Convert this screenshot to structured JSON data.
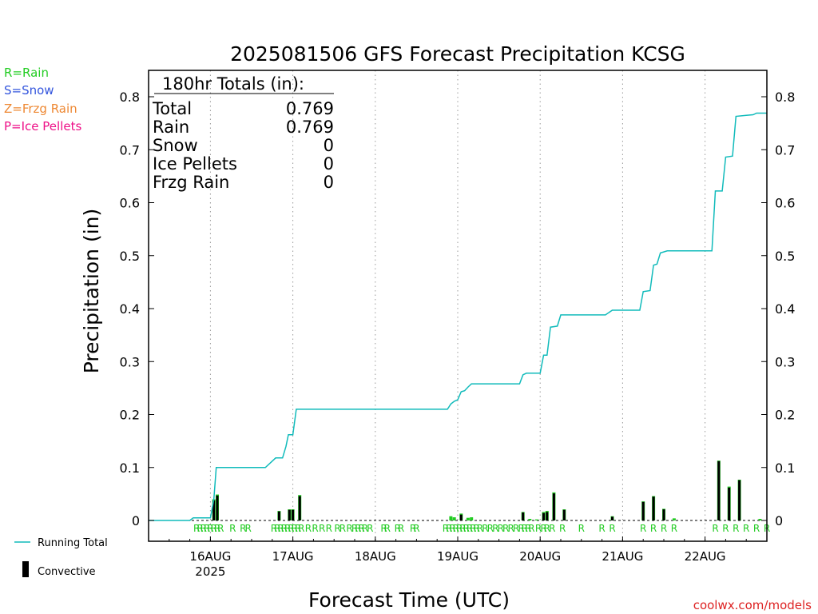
{
  "chart_data": {
    "type": "bar",
    "title": "2025081506 GFS Forecast Precipitation KCSG",
    "ylabel": "Precipitation (in)",
    "xlabel": "Forecast Time (UTC)",
    "ylim": [
      0,
      0.85
    ],
    "y_ticks": [
      "0",
      "0.1",
      "0.2",
      "0.3",
      "0.4",
      "0.5",
      "0.6",
      "0.7",
      "0.8"
    ],
    "x_ticks": [
      {
        "label": "16AUG",
        "sub": "2025",
        "hour": 18
      },
      {
        "label": "17AUG",
        "sub": "",
        "hour": 42
      },
      {
        "label": "18AUG",
        "sub": "",
        "hour": 66
      },
      {
        "label": "19AUG",
        "sub": "",
        "hour": 90
      },
      {
        "label": "20AUG",
        "sub": "",
        "hour": 114
      },
      {
        "label": "21AUG",
        "sub": "",
        "hour": 138
      },
      {
        "label": "22AUG",
        "sub": "",
        "hour": 162
      }
    ],
    "xlim_hours": [
      0,
      180
    ],
    "grid": "vertical dotted at day boundaries",
    "legend_left": [
      {
        "text": "R=Rain",
        "color": "#22cc22"
      },
      {
        "text": "S=Snow",
        "color": "#3355dd"
      },
      {
        "text": "Z=Frzg Rain",
        "color": "#ee8833"
      },
      {
        "text": "P=Ice Pellets",
        "color": "#ee1188"
      }
    ],
    "legend_bottom": [
      {
        "text": "Running Total",
        "color": "#11bbbb"
      },
      {
        "text": "Convective",
        "color": "#000000"
      }
    ],
    "totals_box": {
      "header": "180hr Totals (in):",
      "rows": [
        {
          "label": "Total",
          "value": "0.769"
        },
        {
          "label": "Rain",
          "value": "0.769"
        },
        {
          "label": "Snow",
          "value": "0"
        },
        {
          "label": "Ice Pellets",
          "value": "0"
        },
        {
          "label": "Frzg Rain",
          "value": "0"
        }
      ]
    },
    "credit": "coolwx.com/models",
    "series": [
      {
        "name": "Running Total",
        "color": "#11bbbb",
        "points": [
          [
            0,
            0
          ],
          [
            12,
            0
          ],
          [
            13,
            0.005
          ],
          [
            18,
            0.005
          ],
          [
            19,
            0.04
          ],
          [
            19.7,
            0.1
          ],
          [
            34,
            0.1
          ],
          [
            37,
            0.118
          ],
          [
            39,
            0.118
          ],
          [
            40,
            0.14
          ],
          [
            40.7,
            0.162
          ],
          [
            42,
            0.162
          ],
          [
            43,
            0.21
          ],
          [
            87,
            0.21
          ],
          [
            88,
            0.22
          ],
          [
            89,
            0.225
          ],
          [
            90,
            0.228
          ],
          [
            91,
            0.243
          ],
          [
            92,
            0.245
          ],
          [
            93,
            0.252
          ],
          [
            94,
            0.258
          ],
          [
            108,
            0.258
          ],
          [
            109,
            0.275
          ],
          [
            110,
            0.278
          ],
          [
            114,
            0.278
          ],
          [
            115,
            0.312
          ],
          [
            116,
            0.312
          ],
          [
            117,
            0.365
          ],
          [
            119,
            0.367
          ],
          [
            120,
            0.388
          ],
          [
            133,
            0.388
          ],
          [
            135,
            0.397
          ],
          [
            143,
            0.397
          ],
          [
            144,
            0.432
          ],
          [
            146,
            0.434
          ],
          [
            147,
            0.482
          ],
          [
            148,
            0.484
          ],
          [
            149,
            0.505
          ],
          [
            151,
            0.509
          ],
          [
            164,
            0.509
          ],
          [
            165,
            0.622
          ],
          [
            167,
            0.622
          ],
          [
            168,
            0.686
          ],
          [
            170,
            0.688
          ],
          [
            171,
            0.763
          ],
          [
            174,
            0.765
          ],
          [
            176,
            0.766
          ],
          [
            177,
            0.769
          ],
          [
            180,
            0.769
          ]
        ]
      }
    ],
    "bars_total": [
      [
        19,
        0.04
      ],
      [
        20,
        0.049
      ],
      [
        38,
        0.018
      ],
      [
        41,
        0.021
      ],
      [
        42,
        0.021
      ],
      [
        44,
        0.048
      ],
      [
        88,
        0.008
      ],
      [
        89,
        0.006
      ],
      [
        91,
        0.013
      ],
      [
        93,
        0.005
      ],
      [
        94,
        0.006
      ],
      [
        109,
        0.016
      ],
      [
        111,
        0.003
      ],
      [
        113,
        0.002
      ],
      [
        115,
        0.016
      ],
      [
        116,
        0.018
      ],
      [
        118,
        0.053
      ],
      [
        121,
        0.021
      ],
      [
        135,
        0.008
      ],
      [
        144,
        0.036
      ],
      [
        147,
        0.046
      ],
      [
        150,
        0.022
      ],
      [
        153,
        0.004
      ],
      [
        166,
        0.113
      ],
      [
        169,
        0.064
      ],
      [
        172,
        0.077
      ],
      [
        178,
        0.003
      ]
    ],
    "bars_convective": [
      [
        19,
        0.038
      ],
      [
        20,
        0.047
      ],
      [
        38,
        0.017
      ],
      [
        41,
        0.02
      ],
      [
        42,
        0.02
      ],
      [
        44,
        0.046
      ],
      [
        91,
        0.011
      ],
      [
        109,
        0.015
      ],
      [
        115,
        0.014
      ],
      [
        116,
        0.016
      ],
      [
        118,
        0.051
      ],
      [
        121,
        0.02
      ],
      [
        135,
        0.007
      ],
      [
        144,
        0.035
      ],
      [
        147,
        0.045
      ],
      [
        150,
        0.021
      ],
      [
        166,
        0.112
      ],
      [
        169,
        0.062
      ],
      [
        172,
        0.076
      ]
    ],
    "ptype_marks": [
      {
        "hour": 14,
        "t": "R"
      },
      {
        "hour": 15,
        "t": "R"
      },
      {
        "hour": 16,
        "t": "R"
      },
      {
        "hour": 17,
        "t": "R"
      },
      {
        "hour": 18,
        "t": "R"
      },
      {
        "hour": 19,
        "t": "R"
      },
      {
        "hour": 20,
        "t": "R"
      },
      {
        "hour": 21,
        "t": "R"
      },
      {
        "hour": 24.5,
        "t": "R"
      },
      {
        "hour": 27.5,
        "t": "R"
      },
      {
        "hour": 29,
        "t": "R"
      },
      {
        "hour": 36.5,
        "t": "R"
      },
      {
        "hour": 37.5,
        "t": "R"
      },
      {
        "hour": 38.5,
        "t": "R"
      },
      {
        "hour": 39.5,
        "t": "R"
      },
      {
        "hour": 40.5,
        "t": "R"
      },
      {
        "hour": 41.5,
        "t": "R"
      },
      {
        "hour": 42.5,
        "t": "R"
      },
      {
        "hour": 43.5,
        "t": "R"
      },
      {
        "hour": 44.5,
        "t": "R"
      },
      {
        "hour": 46.5,
        "t": "R"
      },
      {
        "hour": 48.5,
        "t": "R"
      },
      {
        "hour": 50.5,
        "t": "R"
      },
      {
        "hour": 52.5,
        "t": "R"
      },
      {
        "hour": 55,
        "t": "R"
      },
      {
        "hour": 56.5,
        "t": "R"
      },
      {
        "hour": 58.5,
        "t": "R"
      },
      {
        "hour": 60,
        "t": "R"
      },
      {
        "hour": 61,
        "t": "R"
      },
      {
        "hour": 62,
        "t": "R"
      },
      {
        "hour": 63,
        "t": "R"
      },
      {
        "hour": 64.5,
        "t": "R"
      },
      {
        "hour": 68.5,
        "t": "R"
      },
      {
        "hour": 69.5,
        "t": "R"
      },
      {
        "hour": 72.5,
        "t": "R"
      },
      {
        "hour": 73.5,
        "t": "R"
      },
      {
        "hour": 77,
        "t": "R"
      },
      {
        "hour": 78,
        "t": "R"
      },
      {
        "hour": 86.5,
        "t": "R"
      },
      {
        "hour": 87.5,
        "t": "R"
      },
      {
        "hour": 88.5,
        "t": "R"
      },
      {
        "hour": 89.5,
        "t": "R"
      },
      {
        "hour": 90.5,
        "t": "R"
      },
      {
        "hour": 91.5,
        "t": "R"
      },
      {
        "hour": 92.5,
        "t": "R"
      },
      {
        "hour": 93.5,
        "t": "R"
      },
      {
        "hour": 94.5,
        "t": "R"
      },
      {
        "hour": 95.5,
        "t": "R"
      },
      {
        "hour": 96.5,
        "t": "R"
      },
      {
        "hour": 98,
        "t": "R"
      },
      {
        "hour": 99.5,
        "t": "R"
      },
      {
        "hour": 101,
        "t": "R"
      },
      {
        "hour": 102.5,
        "t": "R"
      },
      {
        "hour": 104,
        "t": "R"
      },
      {
        "hour": 105.5,
        "t": "R"
      },
      {
        "hour": 107,
        "t": "R"
      },
      {
        "hour": 108.5,
        "t": "R"
      },
      {
        "hour": 109.5,
        "t": "R"
      },
      {
        "hour": 110.5,
        "t": "R"
      },
      {
        "hour": 111.5,
        "t": "R"
      },
      {
        "hour": 113.5,
        "t": "R"
      },
      {
        "hour": 115,
        "t": "R"
      },
      {
        "hour": 116,
        "t": "R"
      },
      {
        "hour": 117.5,
        "t": "R"
      },
      {
        "hour": 120.5,
        "t": "R"
      },
      {
        "hour": 126,
        "t": "R"
      },
      {
        "hour": 132,
        "t": "R"
      },
      {
        "hour": 135,
        "t": "R"
      },
      {
        "hour": 144,
        "t": "R"
      },
      {
        "hour": 147,
        "t": "R"
      },
      {
        "hour": 150,
        "t": "R"
      },
      {
        "hour": 153,
        "t": "R"
      },
      {
        "hour": 165,
        "t": "R"
      },
      {
        "hour": 168,
        "t": "R"
      },
      {
        "hour": 171,
        "t": "R"
      },
      {
        "hour": 174,
        "t": "R"
      },
      {
        "hour": 177,
        "t": "R"
      },
      {
        "hour": 180,
        "t": "R"
      }
    ]
  }
}
